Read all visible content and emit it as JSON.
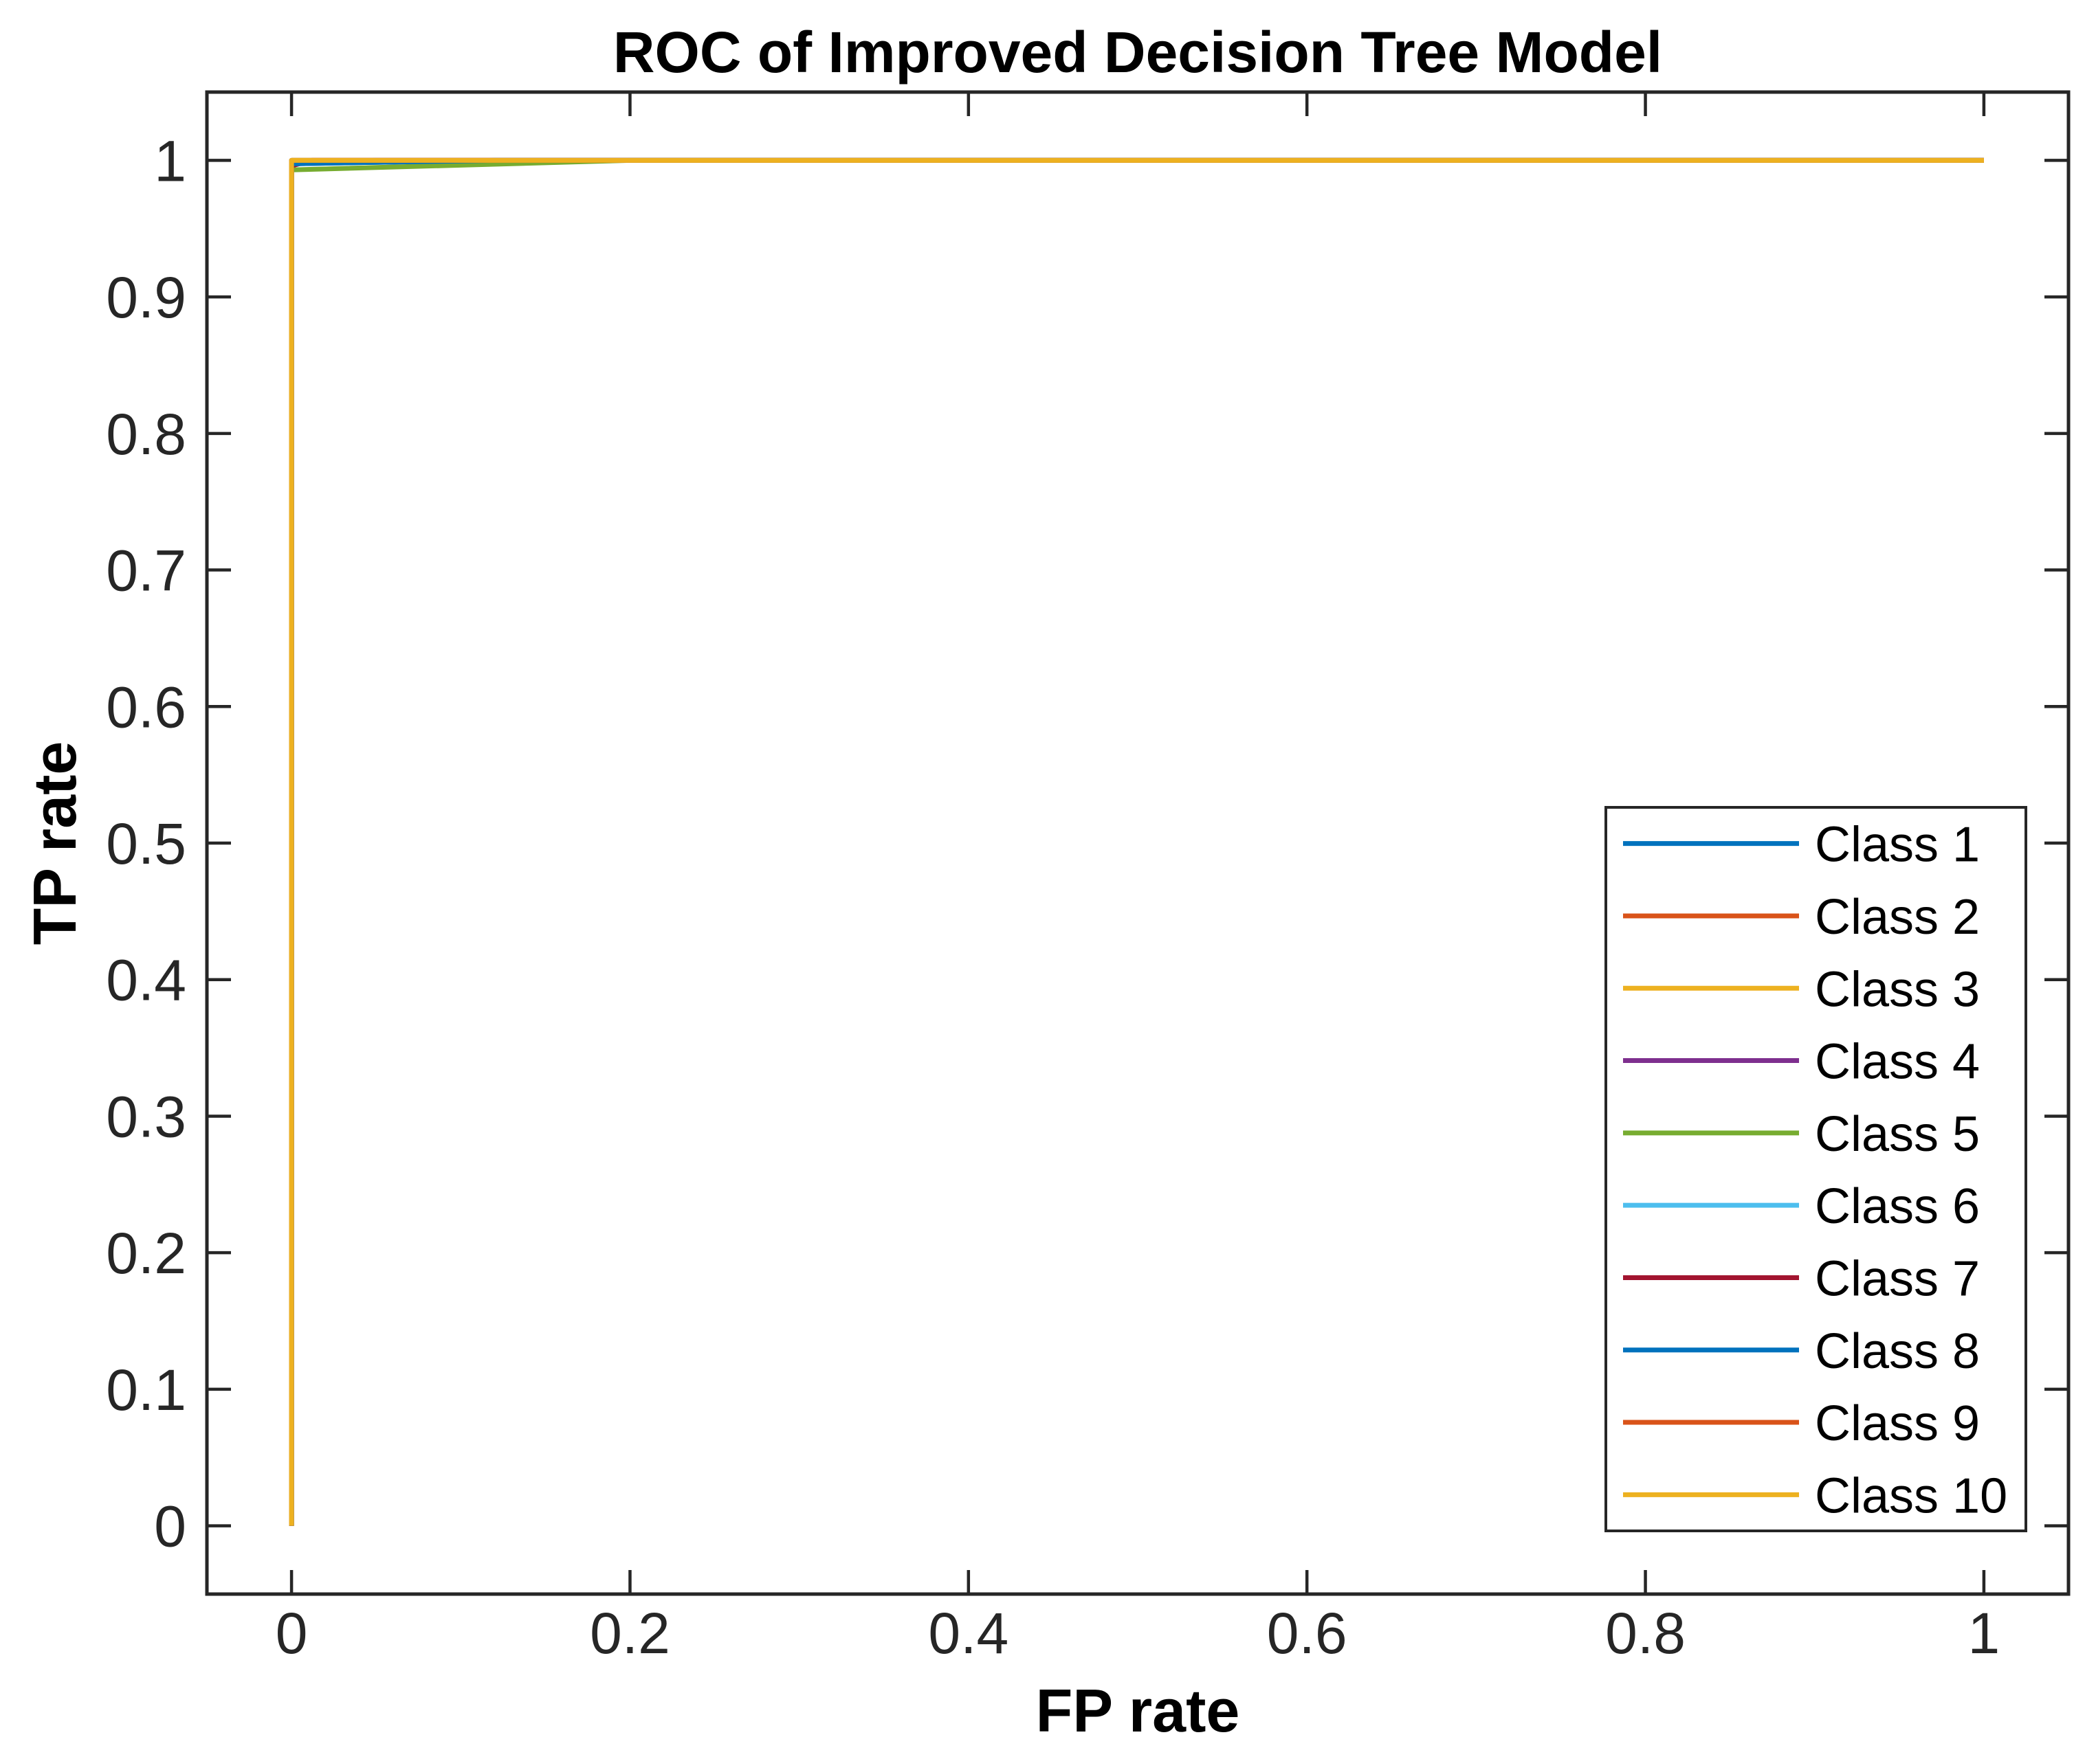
{
  "page": {
    "background": "#ffffff",
    "axis_color": "#262626",
    "text_color": "#000000"
  },
  "chart_data": {
    "type": "line",
    "title": "ROC of Improved Decision Tree Model",
    "xlabel": "FP rate",
    "ylabel": "TP rate",
    "xlim": [
      -0.05,
      1.05
    ],
    "ylim": [
      -0.05,
      1.05
    ],
    "xticks": [
      0,
      0.2,
      0.4,
      0.6,
      0.8,
      1
    ],
    "xtick_labels": [
      "0",
      "0.2",
      "0.4",
      "0.6",
      "0.8",
      "1"
    ],
    "yticks": [
      0,
      0.1,
      0.2,
      0.3,
      0.4,
      0.5,
      0.6,
      0.7,
      0.8,
      0.9,
      1
    ],
    "ytick_labels": [
      "0",
      "0.1",
      "0.2",
      "0.3",
      "0.4",
      "0.5",
      "0.6",
      "0.7",
      "0.8",
      "0.9",
      "1"
    ],
    "grid": false,
    "legend_position": "lower right",
    "legend_entries": [
      "Class 1",
      "Class 2",
      "Class 3",
      "Class 4",
      "Class 5",
      "Class 6",
      "Class 7",
      "Class 8",
      "Class 9",
      "Class 10"
    ],
    "series": [
      {
        "name": "Class 1",
        "color": "#0072BD",
        "x": [
          0,
          0,
          0.12,
          1
        ],
        "y": [
          0,
          0.9975,
          1,
          1
        ]
      },
      {
        "name": "Class 2",
        "color": "#D95319",
        "x": [
          0,
          0,
          1
        ],
        "y": [
          0,
          1,
          1
        ]
      },
      {
        "name": "Class 3",
        "color": "#EDB120",
        "x": [
          0,
          0,
          1
        ],
        "y": [
          0,
          1,
          1
        ]
      },
      {
        "name": "Class 4",
        "color": "#7E2F8E",
        "x": [
          0,
          0,
          0.05,
          1
        ],
        "y": [
          0,
          0.999,
          1,
          1
        ]
      },
      {
        "name": "Class 5",
        "color": "#77AC30",
        "x": [
          0,
          0,
          0.2,
          1
        ],
        "y": [
          0,
          0.993,
          1,
          1
        ]
      },
      {
        "name": "Class 6",
        "color": "#4DBEEE",
        "x": [
          0,
          0,
          1
        ],
        "y": [
          0,
          1,
          1
        ]
      },
      {
        "name": "Class 7",
        "color": "#A2142F",
        "x": [
          0,
          0,
          0.012,
          1
        ],
        "y": [
          0,
          0.996,
          1,
          1
        ]
      },
      {
        "name": "Class 8",
        "color": "#0072BD",
        "x": [
          0,
          0,
          0.12,
          1
        ],
        "y": [
          0,
          0.9975,
          1,
          1
        ]
      },
      {
        "name": "Class 9",
        "color": "#D95319",
        "x": [
          0,
          0,
          1
        ],
        "y": [
          0,
          1,
          1
        ]
      },
      {
        "name": "Class 10",
        "color": "#EDB120",
        "x": [
          0,
          0,
          1
        ],
        "y": [
          0,
          1,
          1
        ]
      }
    ]
  }
}
